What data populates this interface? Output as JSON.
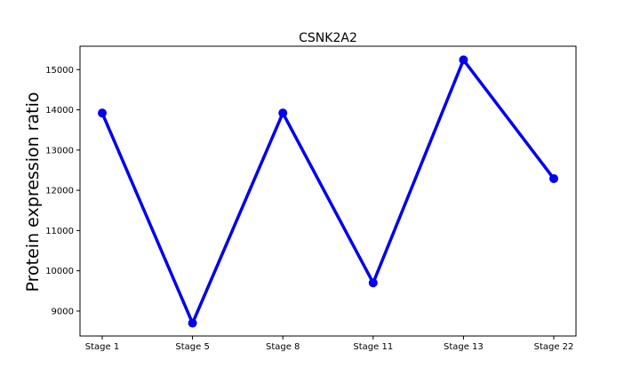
{
  "chart_data": {
    "type": "line",
    "title": "CSNK2A2",
    "xlabel": "",
    "ylabel": "Protein expression ratio",
    "categories": [
      "Stage 1",
      "Stage 5",
      "Stage 8",
      "Stage 11",
      "Stage 13",
      "Stage 22"
    ],
    "series": [
      {
        "values": [
          13920,
          8700,
          13920,
          9700,
          15240,
          12290
        ],
        "color": "#0000ee",
        "marker": "circle"
      }
    ],
    "ylim": [
      8380,
      15580
    ],
    "yticks": [
      9000,
      10000,
      11000,
      12000,
      13000,
      14000,
      15000
    ],
    "grid": false,
    "legend": "none"
  }
}
